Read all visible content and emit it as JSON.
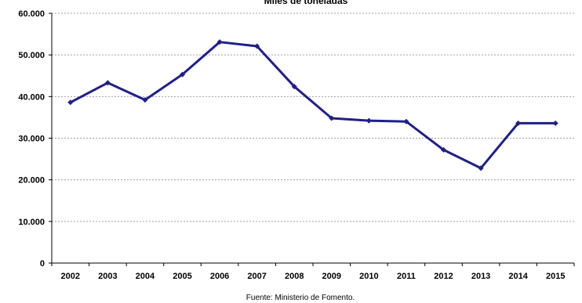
{
  "chart_data": {
    "type": "line",
    "title": "Miles de toneladas",
    "source": "Fuente: Ministerio de Fomento.",
    "xlabel": "",
    "ylabel": "",
    "x": [
      "2002",
      "2003",
      "2004",
      "2005",
      "2006",
      "2007",
      "2008",
      "2009",
      "2010",
      "2011",
      "2012",
      "2013",
      "2014",
      "2015"
    ],
    "series": [
      {
        "values": [
          38600,
          43300,
          39200,
          45300,
          53100,
          52100,
          42400,
          34800,
          34200,
          34000,
          27200,
          22800,
          33600,
          33600
        ]
      }
    ],
    "ylim": [
      0,
      60000
    ],
    "yticks": [
      0,
      10000,
      20000,
      30000,
      40000,
      50000,
      60000
    ],
    "ytick_labels": [
      "0",
      "10.000",
      "20.000",
      "30.000",
      "40.000",
      "50.000",
      "60.000"
    ],
    "grid": true,
    "legend": "none",
    "colors": {
      "line": "#1f1f8a",
      "grid": "#a0a0a0",
      "axis": "#000000"
    }
  }
}
